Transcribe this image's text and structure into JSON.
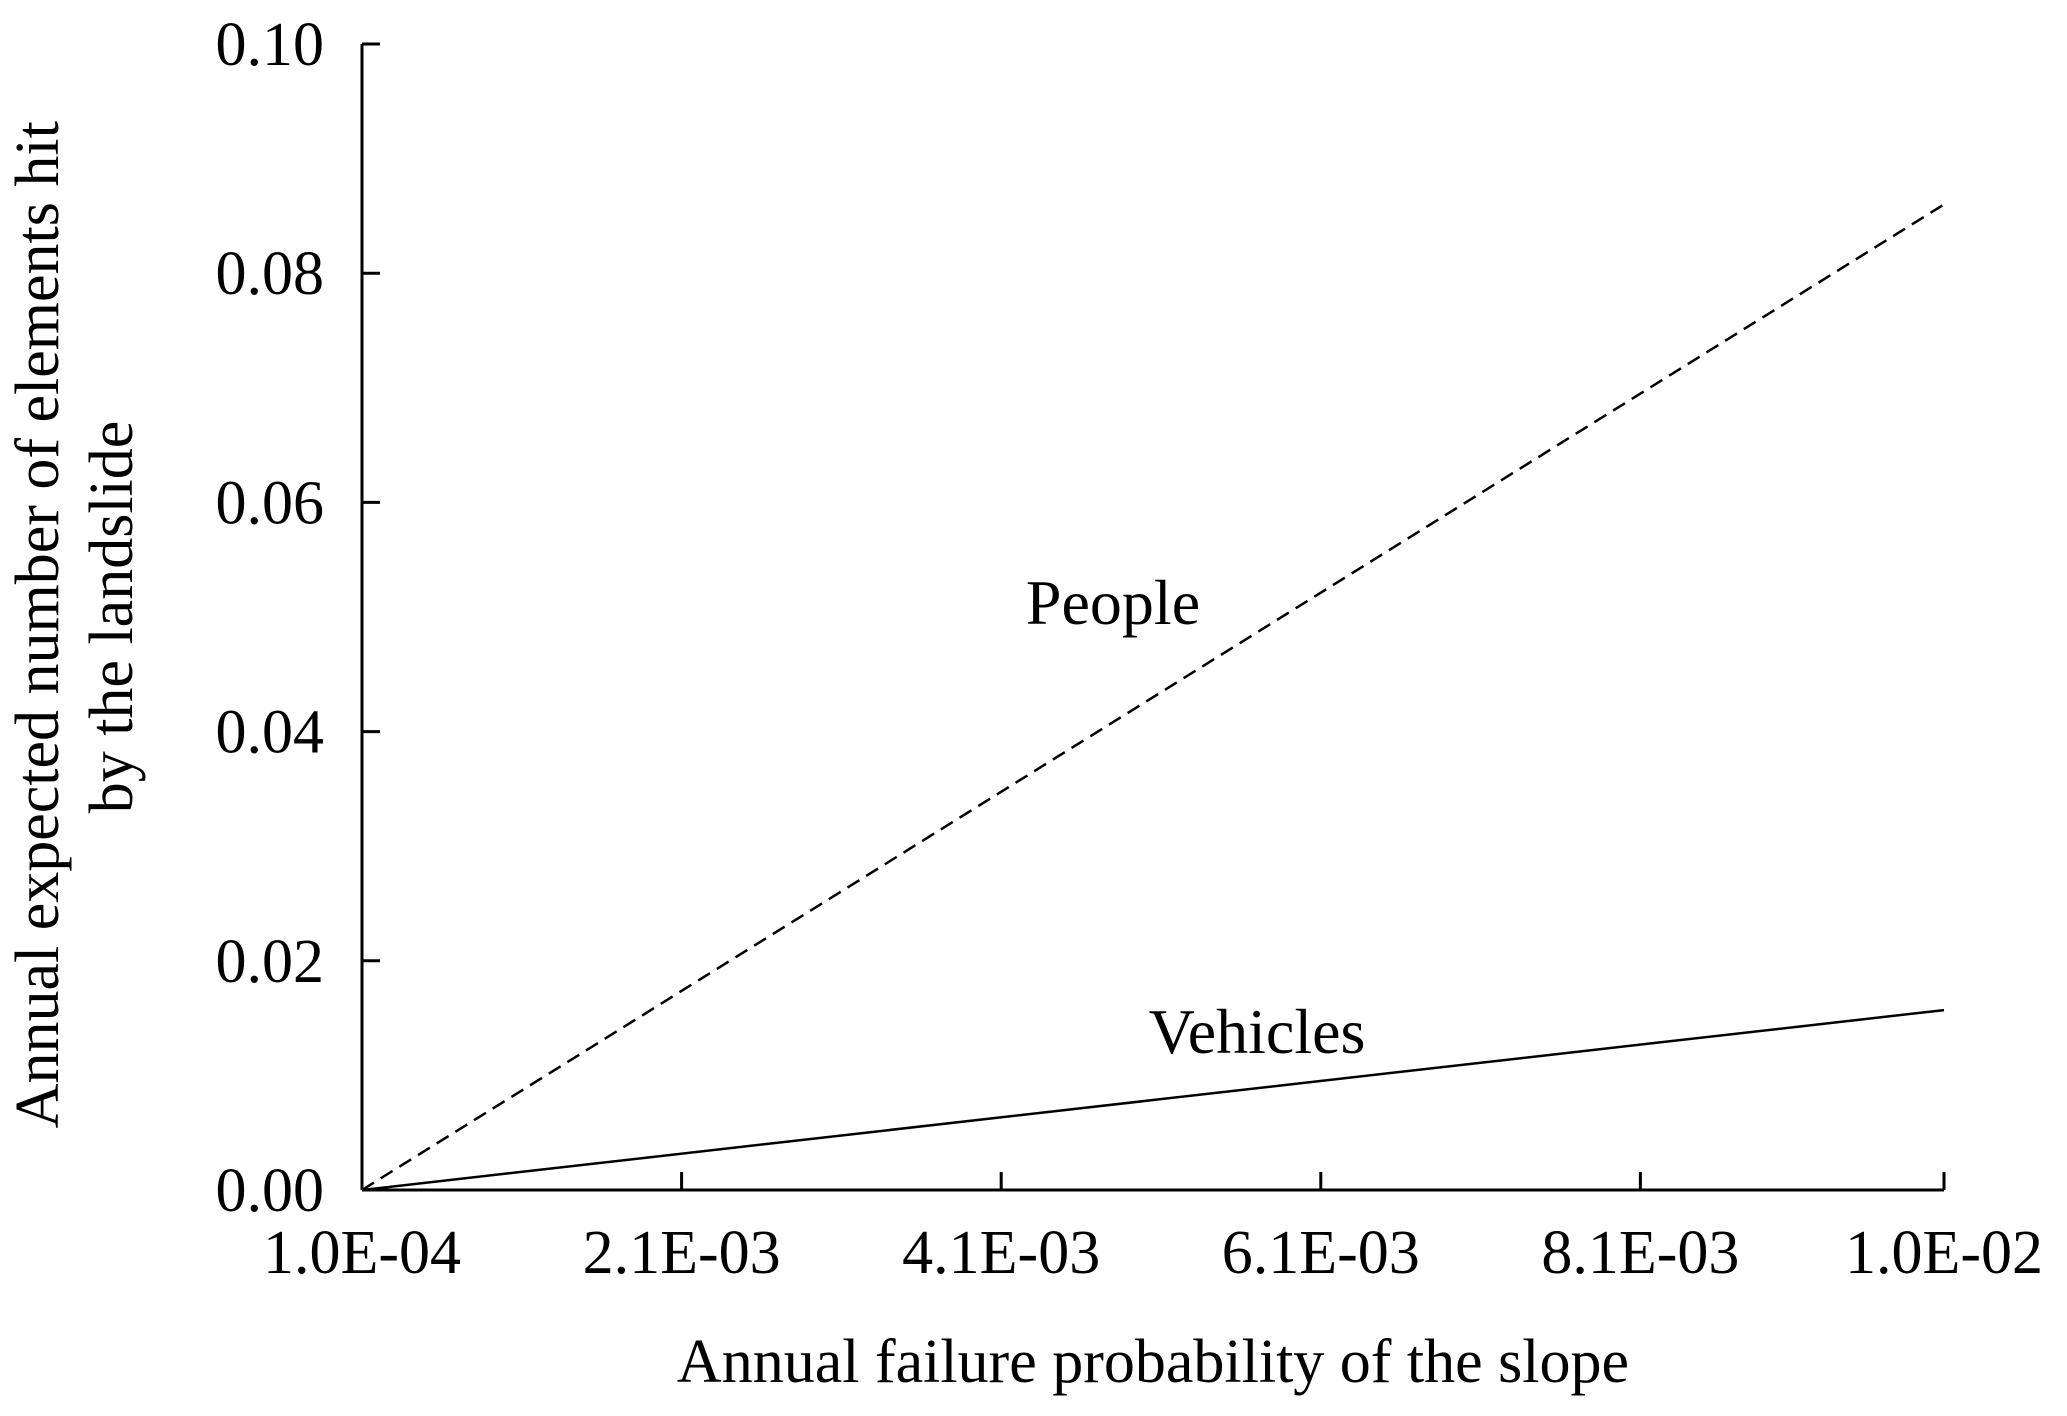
{
  "chart_data": {
    "type": "line",
    "title": "",
    "xlabel": "Annual failure probability of the slope",
    "ylabel_lines": [
      "Annual expected number of elements hit",
      "by the landslide"
    ],
    "x_ticks": [
      "1.0E-04",
      "2.1E-03",
      "4.1E-03",
      "6.1E-03",
      "8.1E-03",
      "1.0E-02"
    ],
    "x_tick_values": [
      0.0001,
      0.0021,
      0.0041,
      0.0061,
      0.0081,
      0.01
    ],
    "y_ticks": [
      "0.00",
      "0.02",
      "0.04",
      "0.06",
      "0.08",
      "0.10"
    ],
    "y_tick_values": [
      0,
      0.02,
      0.04,
      0.06,
      0.08,
      0.1
    ],
    "xlim": [
      0.0001,
      0.01
    ],
    "ylim": [
      0,
      0.1
    ],
    "grid": false,
    "legend": "none",
    "series": [
      {
        "name": "People",
        "style": "dashed",
        "color": "#000000",
        "x": [
          0.0001,
          0.01
        ],
        "y": [
          0.0,
          0.086
        ]
      },
      {
        "name": "Vehicles",
        "style": "solid",
        "color": "#000000",
        "x": [
          0.0001,
          0.01
        ],
        "y": [
          0.0,
          0.0157
        ]
      }
    ]
  }
}
